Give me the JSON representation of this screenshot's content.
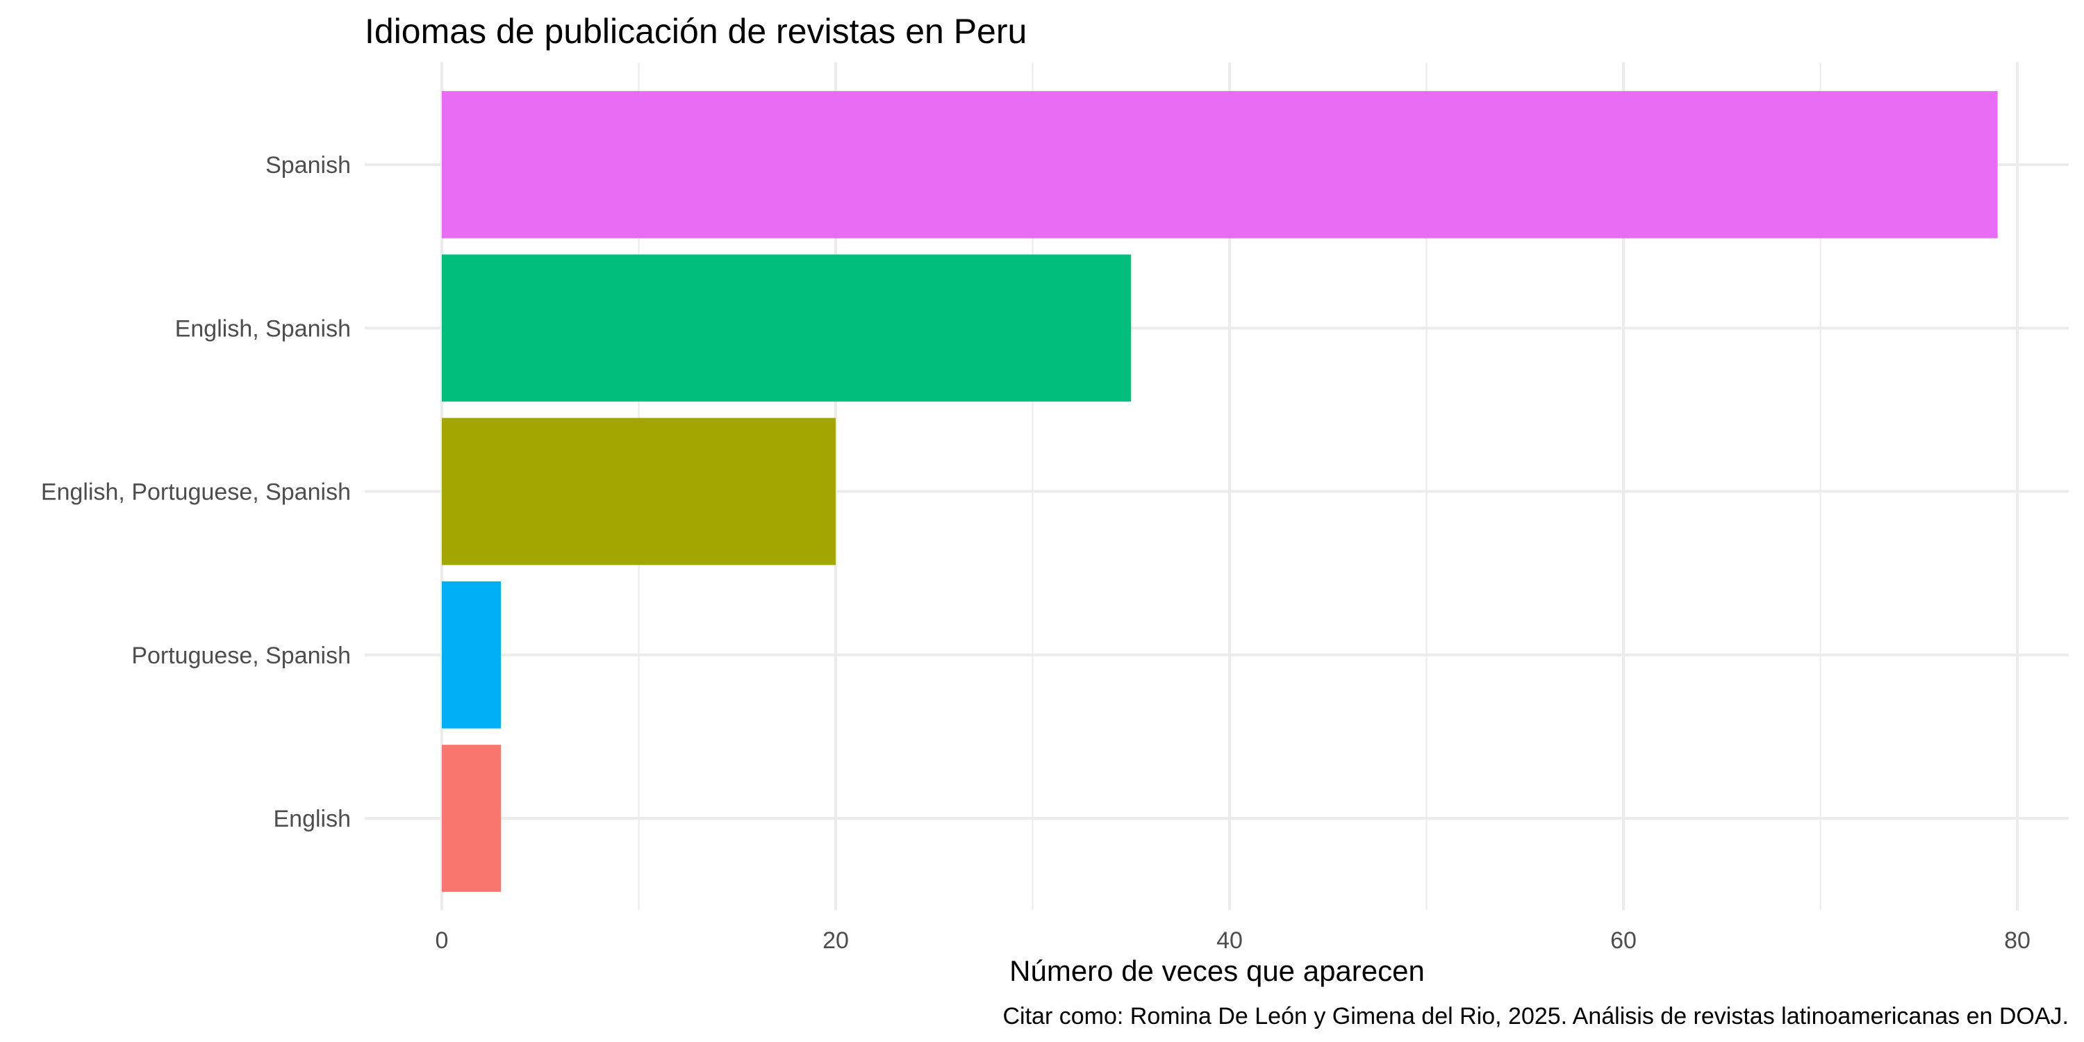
{
  "chart_data": {
    "type": "bar",
    "orientation": "horizontal",
    "title": "Idiomas de publicación de revistas en Peru",
    "xlabel": "Número de veces que aparecen",
    "ylabel": "",
    "caption": "Citar como: Romina De León y Gimena del Rio, 2025. Análisis de revistas latinoamericanas en DOAJ.",
    "categories": [
      "English",
      "Portuguese, Spanish",
      "English, Portuguese, Spanish",
      "English, Spanish",
      "Spanish"
    ],
    "values": [
      3,
      3,
      20,
      35,
      79
    ],
    "colors": [
      "#F8766D",
      "#00B0F6",
      "#A3A500",
      "#00BF7D",
      "#E76BF3"
    ],
    "xlim": [
      0,
      80
    ],
    "x_ticks": [
      0,
      20,
      40,
      60,
      80
    ],
    "x_minor_ticks": [
      10,
      30,
      50,
      70
    ],
    "grid": true,
    "legend": "none"
  }
}
